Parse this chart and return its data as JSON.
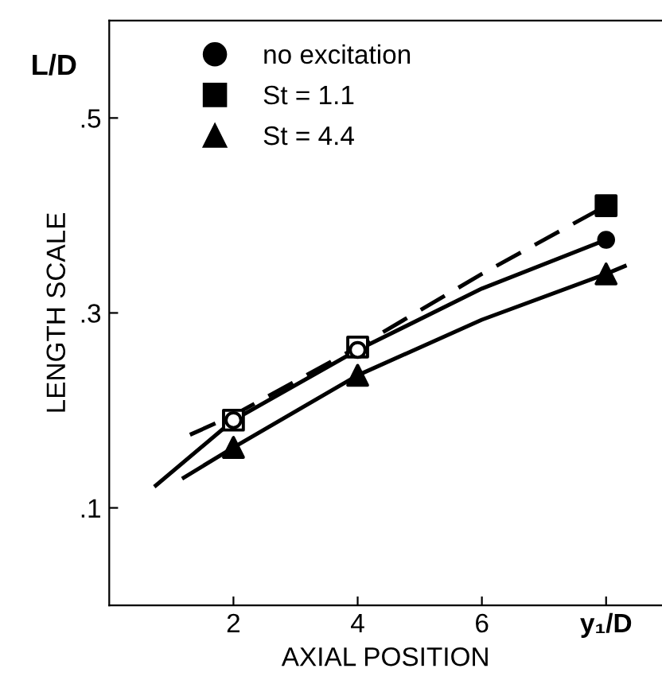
{
  "chart_data": {
    "type": "scatter",
    "xlabel": "AXIAL POSITION",
    "ylabel": "LENGTH SCALE",
    "annotations": [
      "L/D"
    ],
    "xlim": [
      0,
      8.9
    ],
    "ylim": [
      0,
      0.6
    ],
    "xticks": [
      2,
      4,
      6,
      {
        "value": 8,
        "label": "y₁/D"
      }
    ],
    "yticks": [
      {
        "value": 0.1,
        "label": ".1"
      },
      {
        "value": 0.3,
        "label": ".3"
      },
      {
        "value": 0.5,
        "label": ".5"
      }
    ],
    "grid": false,
    "legend": "top left",
    "series": [
      {
        "type": "line",
        "color": "#000000",
        "line_style": "solid",
        "marker": "none",
        "x": [
          0.75,
          2,
          4,
          6,
          8
        ],
        "values": [
          0.123,
          0.19,
          0.262,
          0.325,
          0.375
        ]
      },
      {
        "type": "line",
        "color": "#000000",
        "line_style": "dashed",
        "marker": "none",
        "x": [
          1.3,
          2,
          4,
          6,
          8
        ],
        "values": [
          0.175,
          0.195,
          0.265,
          0.34,
          0.41
        ]
      },
      {
        "type": "line",
        "color": "#000000",
        "line_style": "solid",
        "marker": "none",
        "x": [
          1.2,
          2,
          4,
          6,
          8,
          8.3
        ],
        "values": [
          0.131,
          0.162,
          0.236,
          0.293,
          0.34,
          0.348
        ]
      },
      {
        "marker": "circle",
        "color": "#000000",
        "colors": [
          "#ffffff",
          "#ffffff"
        ],
        "x": [
          2,
          4
        ],
        "values": [
          0.19,
          0.262
        ]
      },
      {
        "marker": "square",
        "color": "#000000",
        "colors": [
          "#ffffff",
          "#ffffff"
        ],
        "x": [
          2,
          4
        ],
        "values": [
          0.19,
          0.265
        ]
      },
      {
        "name": "no excitation",
        "marker": "circle",
        "color": "#000000",
        "x": [
          8
        ],
        "values": [
          0.375
        ]
      },
      {
        "name": "St = 1.1",
        "marker": "square",
        "color": "#000000",
        "x": [
          8
        ],
        "values": [
          0.41
        ]
      },
      {
        "name": "St = 4.4",
        "marker": "triangle",
        "color": "#000000",
        "x": [
          2,
          4,
          8
        ],
        "values": [
          0.162,
          0.236,
          0.34
        ]
      }
    ]
  }
}
